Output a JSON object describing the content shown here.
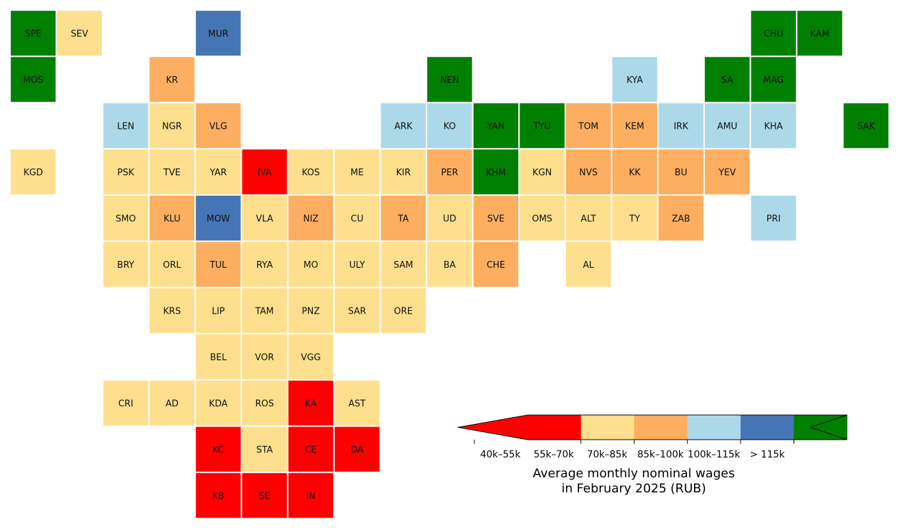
{
  "chart_data": {
    "type": "heatmap",
    "subtype": "tile-grid-map",
    "legend": {
      "title_line1": "Average monthly nominal wages",
      "title_line2": "in February 2025 (RUB)",
      "placement": "bottom-right",
      "extend": "both",
      "bins": [
        {
          "label": "40k–55k",
          "min": 40,
          "max": 55,
          "color": "#ff0000"
        },
        {
          "label": "55k–70k",
          "min": 55,
          "max": 70,
          "color": "#fddf8d"
        },
        {
          "label": "70k–85k",
          "min": 70,
          "max": 85,
          "color": "#fdae61"
        },
        {
          "label": "85k–100k",
          "min": 85,
          "max": 100,
          "color": "#abd9e9"
        },
        {
          "label": "100k–115k",
          "min": 100,
          "max": 115,
          "color": "#4575b4"
        },
        {
          "label": "> 115k",
          "min": 115,
          "max": null,
          "color": "#008000"
        }
      ]
    },
    "regions": [
      {
        "code": "SPE",
        "col": 0,
        "row": 0,
        "bin": 5
      },
      {
        "code": "SEV",
        "col": 1,
        "row": 0,
        "bin": 1
      },
      {
        "code": "MUR",
        "col": 4,
        "row": 0,
        "bin": 4
      },
      {
        "code": "CHU",
        "col": 16,
        "row": 0,
        "bin": 5
      },
      {
        "code": "KAM",
        "col": 17,
        "row": 0,
        "bin": 5
      },
      {
        "code": "MOS",
        "col": 0,
        "row": 1,
        "bin": 5
      },
      {
        "code": "KR",
        "col": 3,
        "row": 1,
        "bin": 2
      },
      {
        "code": "NEN",
        "col": 9,
        "row": 1,
        "bin": 5
      },
      {
        "code": "KYA",
        "col": 13,
        "row": 1,
        "bin": 3
      },
      {
        "code": "SA",
        "col": 15,
        "row": 1,
        "bin": 5
      },
      {
        "code": "MAG",
        "col": 16,
        "row": 1,
        "bin": 5
      },
      {
        "code": "LEN",
        "col": 2,
        "row": 2,
        "bin": 3
      },
      {
        "code": "NGR",
        "col": 3,
        "row": 2,
        "bin": 1
      },
      {
        "code": "VLG",
        "col": 4,
        "row": 2,
        "bin": 2
      },
      {
        "code": "ARK",
        "col": 8,
        "row": 2,
        "bin": 3
      },
      {
        "code": "KO",
        "col": 9,
        "row": 2,
        "bin": 3
      },
      {
        "code": "YAN",
        "col": 10,
        "row": 2,
        "bin": 5
      },
      {
        "code": "TYU",
        "col": 11,
        "row": 2,
        "bin": 5
      },
      {
        "code": "TOM",
        "col": 12,
        "row": 2,
        "bin": 2
      },
      {
        "code": "KEM",
        "col": 13,
        "row": 2,
        "bin": 2
      },
      {
        "code": "IRK",
        "col": 14,
        "row": 2,
        "bin": 3
      },
      {
        "code": "AMU",
        "col": 15,
        "row": 2,
        "bin": 3
      },
      {
        "code": "KHA",
        "col": 16,
        "row": 2,
        "bin": 3
      },
      {
        "code": "SAK",
        "col": 18,
        "row": 2,
        "bin": 5
      },
      {
        "code": "KGD",
        "col": 0,
        "row": 3,
        "bin": 1
      },
      {
        "code": "PSK",
        "col": 2,
        "row": 3,
        "bin": 1
      },
      {
        "code": "TVE",
        "col": 3,
        "row": 3,
        "bin": 1
      },
      {
        "code": "YAR",
        "col": 4,
        "row": 3,
        "bin": 1
      },
      {
        "code": "IVA",
        "col": 5,
        "row": 3,
        "bin": 0
      },
      {
        "code": "KOS",
        "col": 6,
        "row": 3,
        "bin": 1
      },
      {
        "code": "ME",
        "col": 7,
        "row": 3,
        "bin": 1
      },
      {
        "code": "KIR",
        "col": 8,
        "row": 3,
        "bin": 1
      },
      {
        "code": "PER",
        "col": 9,
        "row": 3,
        "bin": 2
      },
      {
        "code": "KHM",
        "col": 10,
        "row": 3,
        "bin": 5
      },
      {
        "code": "KGN",
        "col": 11,
        "row": 3,
        "bin": 1
      },
      {
        "code": "NVS",
        "col": 12,
        "row": 3,
        "bin": 2
      },
      {
        "code": "KK",
        "col": 13,
        "row": 3,
        "bin": 2
      },
      {
        "code": "BU",
        "col": 14,
        "row": 3,
        "bin": 2
      },
      {
        "code": "YEV",
        "col": 15,
        "row": 3,
        "bin": 2
      },
      {
        "code": "SMO",
        "col": 2,
        "row": 4,
        "bin": 1
      },
      {
        "code": "KLU",
        "col": 3,
        "row": 4,
        "bin": 2
      },
      {
        "code": "MOW",
        "col": 4,
        "row": 4,
        "bin": 4
      },
      {
        "code": "VLA",
        "col": 5,
        "row": 4,
        "bin": 1
      },
      {
        "code": "NIZ",
        "col": 6,
        "row": 4,
        "bin": 2
      },
      {
        "code": "CU",
        "col": 7,
        "row": 4,
        "bin": 1
      },
      {
        "code": "TA",
        "col": 8,
        "row": 4,
        "bin": 2
      },
      {
        "code": "UD",
        "col": 9,
        "row": 4,
        "bin": 1
      },
      {
        "code": "SVE",
        "col": 10,
        "row": 4,
        "bin": 2
      },
      {
        "code": "OMS",
        "col": 11,
        "row": 4,
        "bin": 1
      },
      {
        "code": "ALT",
        "col": 12,
        "row": 4,
        "bin": 1
      },
      {
        "code": "TY",
        "col": 13,
        "row": 4,
        "bin": 1
      },
      {
        "code": "ZAB",
        "col": 14,
        "row": 4,
        "bin": 2
      },
      {
        "code": "PRI",
        "col": 16,
        "row": 4,
        "bin": 3
      },
      {
        "code": "BRY",
        "col": 2,
        "row": 5,
        "bin": 1
      },
      {
        "code": "ORL",
        "col": 3,
        "row": 5,
        "bin": 1
      },
      {
        "code": "TUL",
        "col": 4,
        "row": 5,
        "bin": 2
      },
      {
        "code": "RYA",
        "col": 5,
        "row": 5,
        "bin": 1
      },
      {
        "code": "MO",
        "col": 6,
        "row": 5,
        "bin": 1
      },
      {
        "code": "ULY",
        "col": 7,
        "row": 5,
        "bin": 1
      },
      {
        "code": "SAM",
        "col": 8,
        "row": 5,
        "bin": 1
      },
      {
        "code": "BA",
        "col": 9,
        "row": 5,
        "bin": 1
      },
      {
        "code": "CHE",
        "col": 10,
        "row": 5,
        "bin": 2
      },
      {
        "code": "AL",
        "col": 12,
        "row": 5,
        "bin": 1
      },
      {
        "code": "KRS",
        "col": 3,
        "row": 6,
        "bin": 1
      },
      {
        "code": "LIP",
        "col": 4,
        "row": 6,
        "bin": 1
      },
      {
        "code": "TAM",
        "col": 5,
        "row": 6,
        "bin": 1
      },
      {
        "code": "PNZ",
        "col": 6,
        "row": 6,
        "bin": 1
      },
      {
        "code": "SAR",
        "col": 7,
        "row": 6,
        "bin": 1
      },
      {
        "code": "ORE",
        "col": 8,
        "row": 6,
        "bin": 1
      },
      {
        "code": "BEL",
        "col": 4,
        "row": 7,
        "bin": 1
      },
      {
        "code": "VOR",
        "col": 5,
        "row": 7,
        "bin": 1
      },
      {
        "code": "VGG",
        "col": 6,
        "row": 7,
        "bin": 1
      },
      {
        "code": "CRI",
        "col": 2,
        "row": 8,
        "bin": 1
      },
      {
        "code": "AD",
        "col": 3,
        "row": 8,
        "bin": 1
      },
      {
        "code": "KDA",
        "col": 4,
        "row": 8,
        "bin": 1
      },
      {
        "code": "ROS",
        "col": 5,
        "row": 8,
        "bin": 1
      },
      {
        "code": "KA",
        "col": 6,
        "row": 8,
        "bin": 0
      },
      {
        "code": "AST",
        "col": 7,
        "row": 8,
        "bin": 1
      },
      {
        "code": "KC",
        "col": 4,
        "row": 9,
        "bin": 0
      },
      {
        "code": "STA",
        "col": 5,
        "row": 9,
        "bin": 1
      },
      {
        "code": "CE",
        "col": 6,
        "row": 9,
        "bin": 0
      },
      {
        "code": "DA",
        "col": 7,
        "row": 9,
        "bin": 0
      },
      {
        "code": "KB",
        "col": 4,
        "row": 10,
        "bin": 0
      },
      {
        "code": "SE",
        "col": 5,
        "row": 10,
        "bin": 0
      },
      {
        "code": "IN",
        "col": 6,
        "row": 10,
        "bin": 0
      }
    ]
  }
}
